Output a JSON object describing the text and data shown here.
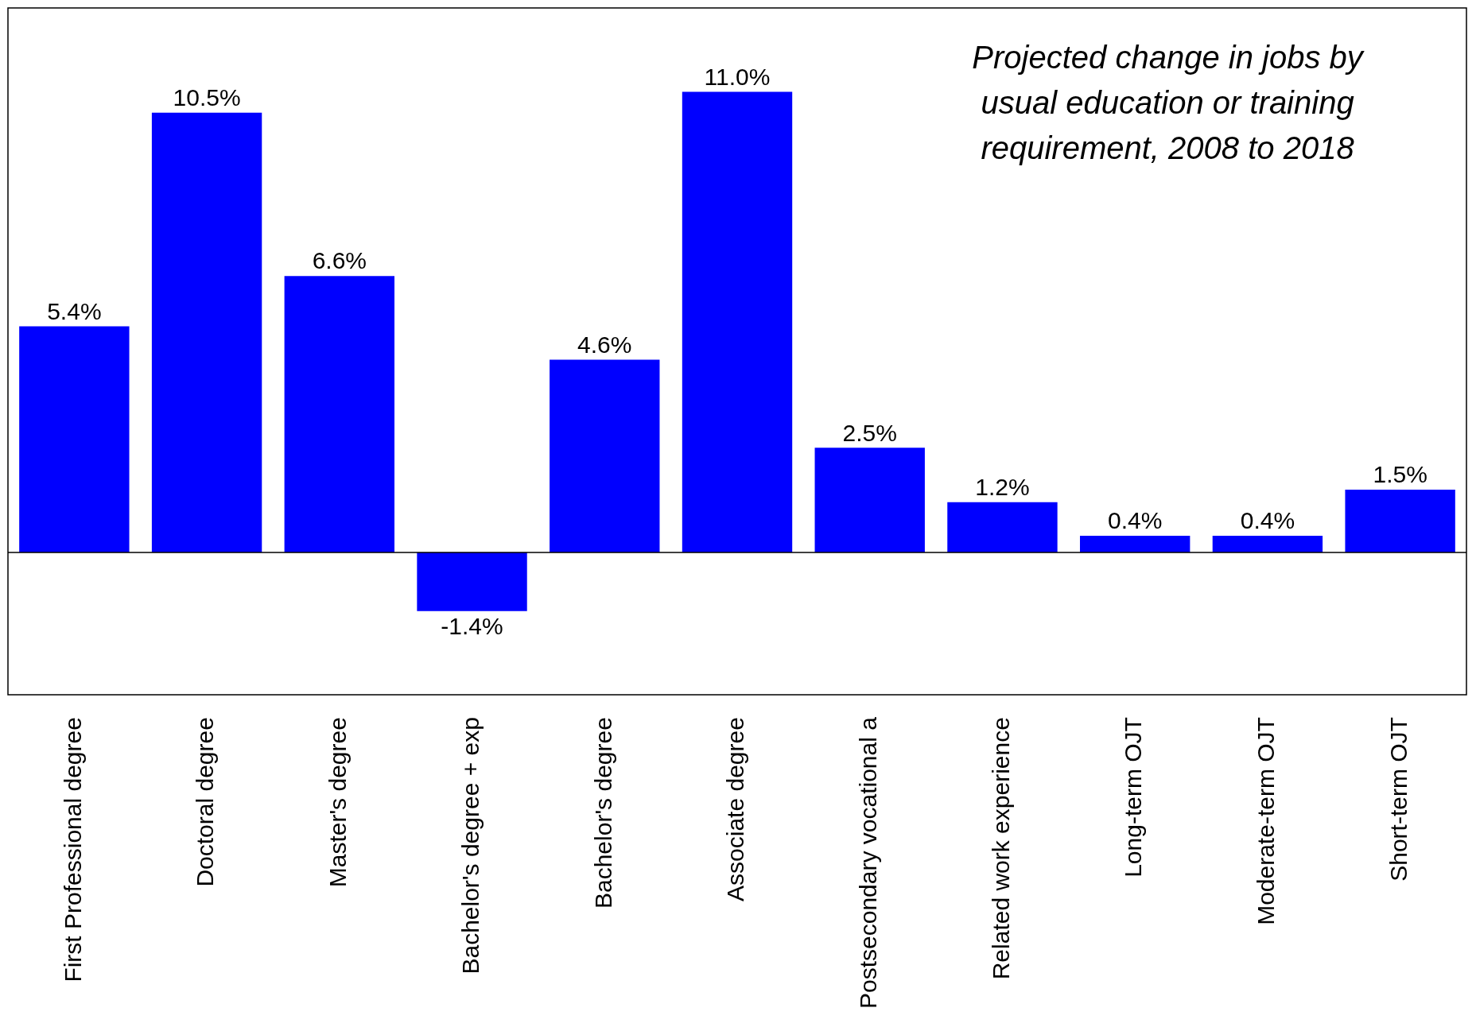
{
  "chart_data": {
    "type": "bar",
    "title": "Projected change in jobs by usual education or training requirement, 2008 to 2018",
    "categories": [
      "First Professional degree",
      "Doctoral degree",
      "Master's degree",
      "Bachelor's degree + exp",
      "Bachelor's degree",
      "Associate degree",
      "Postsecondary vocational a",
      "Related work experience",
      "Long-term OJT",
      "Moderate-term OJT",
      "Short-term OJT"
    ],
    "values": [
      5.4,
      10.5,
      6.6,
      -1.4,
      4.6,
      11.0,
      2.5,
      1.2,
      0.4,
      0.4,
      1.5
    ],
    "value_labels": [
      "5.4%",
      "10.5%",
      "6.6%",
      "-1.4%",
      "4.6%",
      "11.0%",
      "2.5%",
      "1.2%",
      "0.4%",
      "0.4%",
      "1.5%"
    ],
    "color": "#0000ff",
    "ylim": [
      -3.4,
      13
    ],
    "legend": false,
    "grid": false
  }
}
